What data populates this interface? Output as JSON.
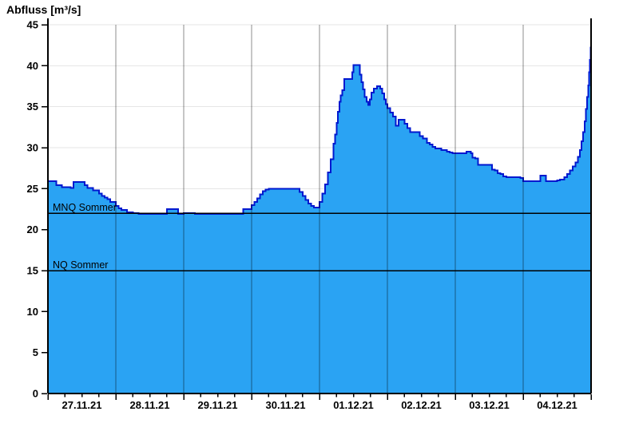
{
  "chart_data": {
    "type": "area",
    "title": "Abfluss [m³/s]",
    "ylabel": "Abfluss [m³/s]",
    "ylim": [
      0,
      45
    ],
    "yticks": [
      0,
      5,
      10,
      15,
      20,
      25,
      30,
      35,
      40,
      45
    ],
    "grid": "horizontal-major-and-vertical-day-lines",
    "legend_position": "none",
    "x_days": [
      "27.11.21",
      "28.11.21",
      "29.11.21",
      "30.11.21",
      "01.12.21",
      "02.12.21",
      "03.12.21",
      "04.12.21"
    ],
    "x_hours_total": 192,
    "minor_tick_hours": 6,
    "reference_lines": [
      {
        "label": "MNQ Sommer",
        "value": 22
      },
      {
        "label": "NQ Sommer",
        "value": 15
      }
    ],
    "colors": {
      "fill": "#2aa3f3",
      "stroke": "#0018cf",
      "grid": "#e6e6e6",
      "dayline": "rgba(0,0,0,0.45)",
      "axis": "#000000",
      "reference": "#000000"
    },
    "series": [
      {
        "name": "Abfluss",
        "unit": "m³/s",
        "step_points_hour_value": [
          [
            0,
            25.9
          ],
          [
            3,
            25.4
          ],
          [
            5,
            25.2
          ],
          [
            8,
            25.1
          ],
          [
            9,
            25.8
          ],
          [
            13,
            25.4
          ],
          [
            14,
            25.1
          ],
          [
            16,
            24.8
          ],
          [
            18,
            24.4
          ],
          [
            19,
            24.1
          ],
          [
            20,
            23.9
          ],
          [
            21,
            23.7
          ],
          [
            22,
            23.4
          ],
          [
            24,
            22.9
          ],
          [
            25,
            22.6
          ],
          [
            26,
            22.4
          ],
          [
            28,
            22.1
          ],
          [
            30,
            22
          ],
          [
            32,
            21.9
          ],
          [
            42,
            22.5
          ],
          [
            46,
            21.9
          ],
          [
            48,
            22
          ],
          [
            52,
            21.9
          ],
          [
            69,
            22.5
          ],
          [
            72,
            23
          ],
          [
            73,
            23.4
          ],
          [
            74,
            23.8
          ],
          [
            75,
            24.3
          ],
          [
            76,
            24.7
          ],
          [
            77,
            24.9
          ],
          [
            78,
            25
          ],
          [
            89,
            24.6
          ],
          [
            90,
            24.1
          ],
          [
            91,
            23.6
          ],
          [
            92,
            23.2
          ],
          [
            93,
            22.9
          ],
          [
            94,
            22.7
          ],
          [
            96,
            23.4
          ],
          [
            97,
            24.4
          ],
          [
            98,
            25.5
          ],
          [
            99,
            27
          ],
          [
            100,
            28.6
          ],
          [
            101,
            30.5
          ],
          [
            101.5,
            31.6
          ],
          [
            102,
            33
          ],
          [
            102.5,
            34.4
          ],
          [
            103,
            35.6
          ],
          [
            103.5,
            36.4
          ],
          [
            104,
            37
          ],
          [
            104.8,
            38.4
          ],
          [
            107.6,
            39.2
          ],
          [
            108,
            40.1
          ],
          [
            110.2,
            38.9
          ],
          [
            110.8,
            38
          ],
          [
            111.4,
            37.1
          ],
          [
            112,
            36.2
          ],
          [
            112.6,
            35.6
          ],
          [
            113.2,
            35.2
          ],
          [
            113.8,
            35.9
          ],
          [
            114.4,
            36.7
          ],
          [
            115.2,
            37.2
          ],
          [
            116.3,
            37.5
          ],
          [
            117.5,
            37.2
          ],
          [
            118.2,
            36.6
          ],
          [
            118.8,
            35.9
          ],
          [
            119.4,
            35.3
          ],
          [
            120,
            34.8
          ],
          [
            121,
            34.3
          ],
          [
            122,
            33.8
          ],
          [
            123,
            32.7
          ],
          [
            124,
            33.4
          ],
          [
            126,
            32.9
          ],
          [
            127,
            32.4
          ],
          [
            128,
            31.9
          ],
          [
            131.5,
            31.4
          ],
          [
            132.5,
            31.1
          ],
          [
            134,
            30.6
          ],
          [
            135,
            30.4
          ],
          [
            136,
            30.1
          ],
          [
            137,
            29.9
          ],
          [
            139,
            29.7
          ],
          [
            141,
            29.5
          ],
          [
            142,
            29.4
          ],
          [
            143,
            29.3
          ],
          [
            144,
            29.3
          ],
          [
            148,
            29.5
          ],
          [
            149.5,
            29.3
          ],
          [
            150,
            28.8
          ],
          [
            151,
            28.7
          ],
          [
            152,
            27.9
          ],
          [
            157,
            27.3
          ],
          [
            158,
            27.2
          ],
          [
            159,
            26.9
          ],
          [
            160,
            26.8
          ],
          [
            161,
            26.5
          ],
          [
            162,
            26.4
          ],
          [
            167,
            26.3
          ],
          [
            168,
            25.9
          ],
          [
            174,
            26.6
          ],
          [
            176,
            25.9
          ],
          [
            180,
            26
          ],
          [
            181,
            26.1
          ],
          [
            182.5,
            26.4
          ],
          [
            183.5,
            26.8
          ],
          [
            184.5,
            27.2
          ],
          [
            185.5,
            27.7
          ],
          [
            186.5,
            28.2
          ],
          [
            187.3,
            28.9
          ],
          [
            188,
            29.7
          ],
          [
            188.6,
            30.8
          ],
          [
            189.2,
            31.9
          ],
          [
            189.7,
            33.2
          ],
          [
            190.2,
            34.7
          ],
          [
            190.6,
            36.2
          ],
          [
            191,
            37.6
          ],
          [
            191.3,
            39.2
          ],
          [
            191.6,
            40.7
          ],
          [
            191.8,
            42.2
          ],
          [
            191.95,
            43.8
          ]
        ]
      }
    ]
  }
}
